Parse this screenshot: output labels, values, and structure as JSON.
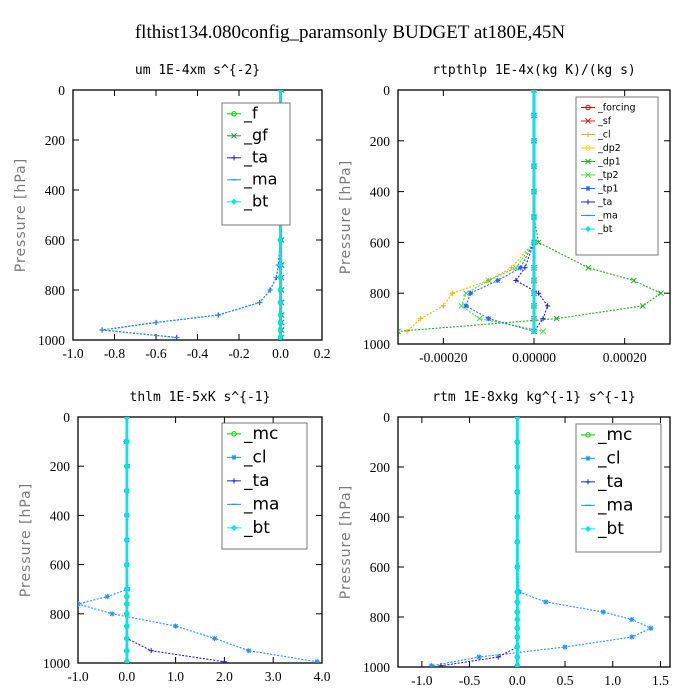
{
  "figure_title": "flthist134.080config_paramsonly  BUDGET at180E,45N",
  "colors": {
    "f": "#00cc00",
    "gf": "#2e8b57",
    "ta": "#2020cc",
    "ma": "#1e90ff",
    "bt": "#00e5ee",
    "mc": "#00cc00",
    "cl": "#1e90ff",
    "forcing": "#dd0000",
    "sf": "#cc2222",
    "cl_orange": "#ffaa00",
    "dp2": "#ffcc00",
    "dp1": "#22aa22",
    "tp2": "#44dd44",
    "tp1": "#2266ff"
  },
  "chart_data": [
    {
      "type": "line",
      "title": "um   1E-4xm s^{-2}",
      "ylabel": "Pressure [hPa]",
      "xlim": [
        -1.0,
        0.2
      ],
      "ylim": [
        1000,
        0
      ],
      "xticks": [
        -1.0,
        -0.8,
        -0.6,
        -0.4,
        -0.2,
        0.0,
        0.2
      ],
      "xtick_labels": [
        "-1.0",
        "-0.8",
        "-0.6",
        "-0.4",
        "-0.2",
        "0.0",
        "0.2"
      ],
      "yticks": [
        0,
        200,
        400,
        600,
        800,
        1000
      ],
      "ytick_labels": [
        "0",
        "200",
        "400",
        "600",
        "800",
        "1000"
      ],
      "legend_position": "top-right",
      "series": [
        {
          "name": "_f",
          "color": "#00cc00",
          "marker": "circle",
          "x": [
            0,
            0,
            0,
            0,
            0,
            0,
            0,
            0,
            0,
            0,
            0,
            0,
            0,
            0,
            0
          ],
          "y": [
            0,
            100,
            200,
            300,
            400,
            500,
            600,
            700,
            750,
            800,
            850,
            900,
            930,
            960,
            990
          ]
        },
        {
          "name": "_gf",
          "color": "#2e8b57",
          "marker": "x",
          "x": [
            0.005,
            0.005,
            0.005,
            0.005,
            0.005,
            0.005,
            0.005,
            0.005,
            0.005,
            0.005,
            0.005,
            0.005,
            0.005,
            0.005,
            0.005
          ],
          "y": [
            0,
            100,
            200,
            300,
            400,
            500,
            600,
            700,
            750,
            800,
            850,
            900,
            930,
            960,
            990
          ]
        },
        {
          "name": "_ta",
          "color": "#2020cc",
          "marker": "plus",
          "x": [
            0,
            0,
            0,
            0,
            0,
            0,
            0,
            -0.01,
            -0.02,
            -0.05,
            -0.1,
            -0.3,
            -0.6,
            -0.86,
            -0.5
          ],
          "y": [
            0,
            100,
            200,
            300,
            400,
            500,
            600,
            700,
            750,
            800,
            850,
            900,
            930,
            960,
            990
          ]
        },
        {
          "name": "_ma",
          "color": "#1e90ff",
          "marker": "dash",
          "x": [
            0,
            0,
            0,
            0,
            0,
            0,
            -0.002,
            -0.01,
            -0.02,
            -0.05,
            -0.1,
            -0.3,
            -0.6,
            -0.86,
            -0.5
          ],
          "y": [
            0,
            100,
            200,
            300,
            400,
            500,
            600,
            700,
            750,
            800,
            850,
            900,
            930,
            960,
            990
          ]
        },
        {
          "name": "_bt",
          "color": "#00e5ee",
          "marker": "diamond",
          "x": [
            0,
            0,
            0,
            0,
            0,
            0,
            0,
            0,
            0,
            0,
            0,
            0,
            0,
            0,
            0
          ],
          "y": [
            0,
            100,
            200,
            300,
            400,
            500,
            600,
            700,
            750,
            800,
            850,
            900,
            930,
            960,
            990
          ]
        }
      ]
    },
    {
      "type": "line",
      "title": "rtpthlp   1E-4x(kg K)/(kg s)",
      "ylabel": "Pressure [hPa]",
      "xlim": [
        -0.0003,
        0.0003
      ],
      "ylim": [
        1000,
        0
      ],
      "xticks": [
        -0.0002,
        0.0,
        0.0002
      ],
      "xtick_labels": [
        "-0.00020",
        "0.00000",
        "0.00020"
      ],
      "yticks": [
        0,
        200,
        400,
        600,
        800,
        1000
      ],
      "ytick_labels": [
        "0",
        "200",
        "400",
        "600",
        "800",
        "1000"
      ],
      "legend_position": "top-right",
      "series": [
        {
          "name": "_forcing",
          "color": "#dd0000",
          "marker": "circle",
          "x": [
            0,
            0,
            0,
            0,
            0,
            0,
            0,
            0,
            0,
            0,
            0,
            0,
            0
          ],
          "y": [
            0,
            100,
            200,
            300,
            400,
            500,
            600,
            700,
            750,
            800,
            850,
            900,
            950
          ]
        },
        {
          "name": "_sf",
          "color": "#cc2222",
          "marker": "x",
          "x": [
            0,
            0,
            0,
            0,
            0,
            0,
            0,
            0,
            0,
            0,
            0,
            0,
            0
          ],
          "y": [
            0,
            100,
            200,
            300,
            400,
            500,
            600,
            700,
            750,
            800,
            850,
            900,
            950
          ]
        },
        {
          "name": "_cl",
          "color": "#ffaa00",
          "marker": "plus",
          "x": [
            0,
            0,
            0,
            0,
            0,
            0,
            0,
            -5e-05,
            -0.0001,
            -0.00018,
            -0.0002,
            -0.00025,
            -0.00028
          ],
          "y": [
            0,
            100,
            200,
            300,
            400,
            500,
            600,
            700,
            750,
            800,
            850,
            900,
            950
          ]
        },
        {
          "name": "_dp2",
          "color": "#ffcc00",
          "marker": "circle",
          "x": [
            0,
            0,
            0,
            0,
            0,
            0,
            0,
            0,
            0,
            0,
            0,
            0,
            0
          ],
          "y": [
            0,
            100,
            200,
            300,
            400,
            500,
            600,
            700,
            750,
            800,
            850,
            900,
            950
          ]
        },
        {
          "name": "_dp1",
          "color": "#22aa22",
          "marker": "x",
          "x": [
            0,
            0,
            0,
            0,
            0,
            0,
            1e-05,
            0.00012,
            0.00022,
            0.00028,
            0.00024,
            5e-05,
            -0.0003
          ],
          "y": [
            0,
            100,
            200,
            300,
            400,
            500,
            600,
            700,
            750,
            800,
            850,
            900,
            950
          ]
        },
        {
          "name": "_tp2",
          "color": "#44dd44",
          "marker": "x",
          "x": [
            0,
            0,
            0,
            0,
            0,
            0,
            0,
            -4e-05,
            -0.0001,
            -0.00015,
            -0.00016,
            -0.00012,
            2e-05
          ],
          "y": [
            0,
            100,
            200,
            300,
            400,
            500,
            600,
            700,
            750,
            800,
            850,
            900,
            950
          ]
        },
        {
          "name": "_tp1",
          "color": "#2266ff",
          "marker": "star",
          "x": [
            0,
            0,
            0,
            0,
            0,
            0,
            0,
            -3e-05,
            -8e-05,
            -0.00014,
            -0.00015,
            -0.0001,
            0
          ],
          "y": [
            0,
            100,
            200,
            300,
            400,
            500,
            600,
            700,
            750,
            800,
            850,
            900,
            950
          ]
        },
        {
          "name": "_ta",
          "color": "#2020cc",
          "marker": "plus",
          "x": [
            0,
            0,
            0,
            0,
            0,
            0,
            0,
            -2e-05,
            -4e-05,
            1e-05,
            3e-05,
            2e-05,
            0
          ],
          "y": [
            0,
            100,
            200,
            300,
            400,
            500,
            600,
            700,
            750,
            800,
            850,
            900,
            950
          ]
        },
        {
          "name": "_ma",
          "color": "#1e90ff",
          "marker": "dash",
          "x": [
            0,
            0,
            0,
            0,
            0,
            0,
            0,
            0,
            0,
            0,
            0,
            0,
            0
          ],
          "y": [
            0,
            100,
            200,
            300,
            400,
            500,
            600,
            700,
            750,
            800,
            850,
            900,
            950
          ]
        },
        {
          "name": "_bt",
          "color": "#00e5ee",
          "marker": "diamond",
          "x": [
            0,
            0,
            0,
            0,
            0,
            0,
            0,
            0,
            0,
            0,
            0,
            0,
            0
          ],
          "y": [
            0,
            100,
            200,
            300,
            400,
            500,
            600,
            700,
            750,
            800,
            850,
            900,
            950
          ]
        }
      ]
    },
    {
      "type": "line",
      "title": "thlm   1E-5xK s^{-1}",
      "ylabel": "Pressure [hPa]",
      "xlim": [
        -1.0,
        4.0
      ],
      "ylim": [
        1000,
        0
      ],
      "xticks": [
        -1.0,
        0.0,
        1.0,
        2.0,
        3.0,
        4.0
      ],
      "xtick_labels": [
        "-1.0",
        "0.0",
        "1.0",
        "2.0",
        "3.0",
        "4.0"
      ],
      "yticks": [
        0,
        200,
        400,
        600,
        800,
        1000
      ],
      "ytick_labels": [
        "0",
        "200",
        "400",
        "600",
        "800",
        "1000"
      ],
      "legend_position": "top-right",
      "series": [
        {
          "name": "_mc",
          "color": "#00cc00",
          "marker": "circle",
          "x": [
            0,
            0,
            0,
            0,
            0,
            0,
            0,
            0,
            0,
            0,
            0,
            0,
            0,
            0,
            0
          ],
          "y": [
            0,
            100,
            200,
            300,
            400,
            500,
            600,
            700,
            730,
            760,
            800,
            850,
            900,
            950,
            995
          ]
        },
        {
          "name": "_cl",
          "color": "#1e90ff",
          "marker": "star",
          "x": [
            0,
            -0.02,
            0.02,
            0,
            0,
            0,
            0,
            0.02,
            -0.4,
            -1.0,
            -0.3,
            1.0,
            1.8,
            2.5,
            3.9
          ],
          "y": [
            0,
            100,
            200,
            300,
            400,
            500,
            600,
            700,
            730,
            760,
            800,
            850,
            900,
            950,
            995
          ]
        },
        {
          "name": "_ta",
          "color": "#2020cc",
          "marker": "plus",
          "x": [
            0,
            0,
            0,
            0,
            0,
            0,
            0,
            0,
            0,
            0,
            0,
            0,
            0,
            0.5,
            2.0
          ],
          "y": [
            0,
            100,
            200,
            300,
            400,
            500,
            600,
            700,
            730,
            760,
            800,
            850,
            900,
            950,
            995
          ]
        },
        {
          "name": "_ma",
          "color": "#1e90ff",
          "marker": "dash",
          "x": [
            0,
            0,
            0,
            0,
            0,
            0,
            0,
            0,
            0,
            0,
            0,
            0,
            0,
            0,
            0
          ],
          "y": [
            0,
            100,
            200,
            300,
            400,
            500,
            600,
            700,
            730,
            760,
            800,
            850,
            900,
            950,
            995
          ]
        },
        {
          "name": "_bt",
          "color": "#00e5ee",
          "marker": "diamond",
          "x": [
            0,
            0,
            0,
            0,
            0,
            0,
            0,
            0,
            0,
            0,
            0,
            0,
            0,
            0,
            0
          ],
          "y": [
            0,
            100,
            200,
            300,
            400,
            500,
            600,
            700,
            730,
            760,
            800,
            850,
            900,
            950,
            995
          ]
        }
      ]
    },
    {
      "type": "line",
      "title": "rtm   1E-8xkg kg^{-1} s^{-1}",
      "ylabel": "Pressure [hPa]",
      "xlim": [
        -1.25,
        1.6
      ],
      "ylim": [
        1000,
        0
      ],
      "xticks": [
        -1.0,
        -0.5,
        0.0,
        0.5,
        1.0,
        1.5
      ],
      "xtick_labels": [
        "-1.0",
        "-0.5",
        "0.0",
        "0.5",
        "1.0",
        "1.5"
      ],
      "yticks": [
        0,
        200,
        400,
        600,
        800,
        1000
      ],
      "ytick_labels": [
        "0",
        "200",
        "400",
        "600",
        "800",
        "1000"
      ],
      "legend_position": "top-right",
      "series": [
        {
          "name": "_mc",
          "color": "#00cc00",
          "marker": "circle",
          "x": [
            0,
            0,
            0,
            0,
            0,
            0,
            0,
            0,
            0,
            0,
            0,
            0,
            0,
            0,
            0,
            0
          ],
          "y": [
            0,
            100,
            200,
            300,
            400,
            500,
            600,
            700,
            740,
            780,
            810,
            845,
            880,
            920,
            960,
            995
          ]
        },
        {
          "name": "_cl",
          "color": "#1e90ff",
          "marker": "star",
          "x": [
            0,
            0,
            0,
            0,
            0,
            0,
            0,
            0.02,
            0.3,
            0.9,
            1.2,
            1.4,
            1.2,
            0.5,
            -0.4,
            -0.9
          ],
          "y": [
            0,
            100,
            200,
            300,
            400,
            500,
            600,
            700,
            740,
            780,
            810,
            845,
            880,
            920,
            960,
            995
          ]
        },
        {
          "name": "_ta",
          "color": "#2020cc",
          "marker": "plus",
          "x": [
            0,
            0,
            0,
            0,
            0,
            0,
            0,
            0,
            0,
            0,
            0,
            0,
            0,
            0,
            -0.2,
            -0.8
          ],
          "y": [
            0,
            100,
            200,
            300,
            400,
            500,
            600,
            700,
            740,
            780,
            810,
            845,
            880,
            920,
            960,
            995
          ]
        },
        {
          "name": "_ma",
          "color": "#1e90ff",
          "marker": "dash",
          "x": [
            0,
            0,
            0,
            0,
            0,
            0,
            0,
            0,
            0,
            0,
            0,
            0,
            0,
            0,
            0,
            0
          ],
          "y": [
            0,
            100,
            200,
            300,
            400,
            500,
            600,
            700,
            740,
            780,
            810,
            845,
            880,
            920,
            960,
            995
          ]
        },
        {
          "name": "_bt",
          "color": "#00e5ee",
          "marker": "diamond",
          "x": [
            0,
            0,
            0,
            0,
            0,
            0,
            0,
            0,
            0,
            0,
            0,
            0,
            0,
            0,
            0,
            0
          ],
          "y": [
            0,
            100,
            200,
            300,
            400,
            500,
            600,
            700,
            740,
            780,
            810,
            845,
            880,
            920,
            960,
            995
          ]
        }
      ]
    }
  ]
}
